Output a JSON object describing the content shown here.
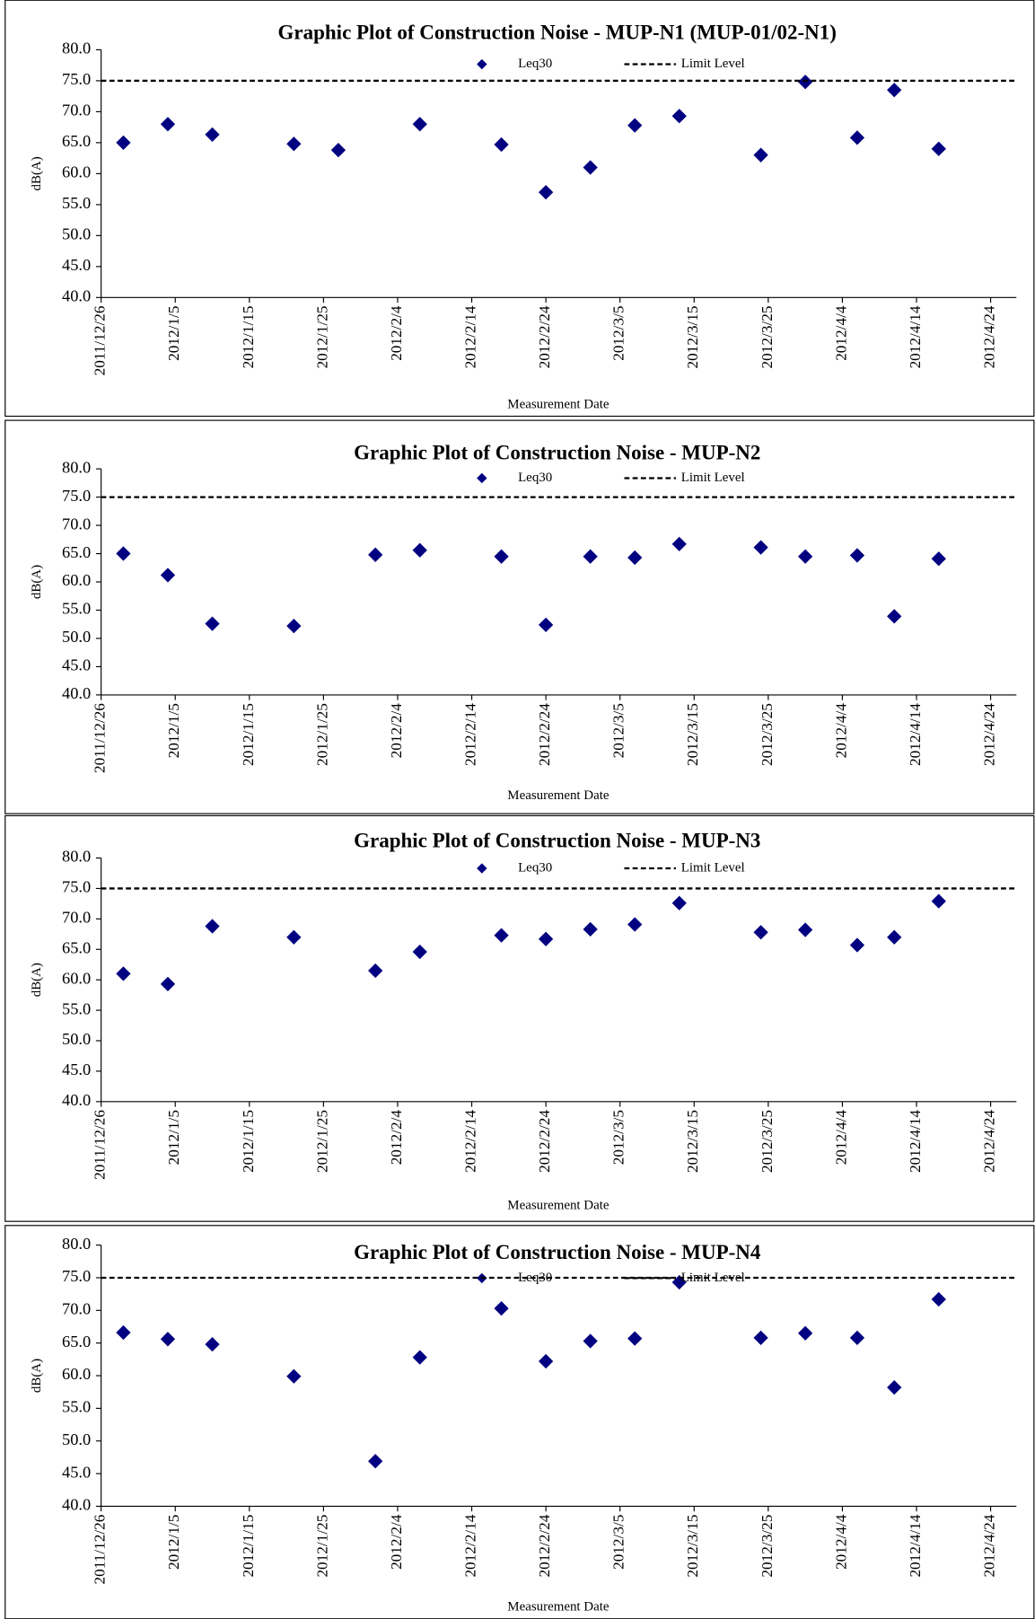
{
  "chart_data": [
    {
      "type": "scatter",
      "title": "Graphic Plot of Construction Noise - MUP-N1 (MUP-01/02-N1)",
      "x_label": "Measurement Date",
      "y_label": "dB(A)",
      "x": [
        "2011/12/29",
        "2012/1/4",
        "2012/1/10",
        "2012/1/21",
        "2012/1/27",
        "2012/2/7",
        "2012/2/18",
        "2012/2/24",
        "2012/3/1",
        "2012/3/7",
        "2012/3/13",
        "2012/3/24",
        "2012/3/30",
        "2012/4/6",
        "2012/4/11",
        "2012/4/17"
      ],
      "series": [
        {
          "name": "Leq30",
          "color": "#000080",
          "values": [
            65.0,
            68.0,
            66.3,
            64.8,
            63.8,
            68.0,
            64.7,
            57.0,
            61.0,
            67.8,
            69.3,
            63.0,
            74.8,
            65.8,
            73.5,
            64.0
          ]
        }
      ],
      "lines": [
        {
          "name": "Limit Level",
          "value": 75,
          "color": "#000000"
        }
      ],
      "xlim": [
        "2011/12/26",
        "2012/4/28"
      ],
      "xticks": [
        "2011/12/26",
        "2012/1/5",
        "2012/1/15",
        "2012/1/25",
        "2012/2/4",
        "2012/2/14",
        "2012/2/24",
        "2012/3/5",
        "2012/3/15",
        "2012/3/25",
        "2012/4/4",
        "2012/4/14",
        "2012/4/24"
      ],
      "ylim": [
        40,
        80
      ],
      "yticks": [
        {
          "value": 40,
          "label": "40.0"
        },
        {
          "value": 45,
          "label": "45.0"
        },
        {
          "value": 50,
          "label": "50.0"
        },
        {
          "value": 55,
          "label": "55.0"
        },
        {
          "value": 60,
          "label": "60.0"
        },
        {
          "value": 65,
          "label": "65.0"
        },
        {
          "value": 70,
          "label": "70.0"
        },
        {
          "value": 75,
          "label": "75.0"
        },
        {
          "value": 80,
          "label": "80.0"
        }
      ]
    },
    {
      "type": "scatter",
      "title": "Graphic Plot of Construction Noise - MUP-N2",
      "x_label": "Measurement Date",
      "y_label": "dB(A)",
      "x": [
        "2011/12/29",
        "2012/1/4",
        "2012/1/10",
        "2012/1/21",
        "2012/2/1",
        "2012/2/7",
        "2012/2/18",
        "2012/2/24",
        "2012/3/1",
        "2012/3/7",
        "2012/3/13",
        "2012/3/24",
        "2012/3/30",
        "2012/4/6",
        "2012/4/11",
        "2012/4/17"
      ],
      "series": [
        {
          "name": "Leq30",
          "color": "#000080",
          "values": [
            65.0,
            61.2,
            52.6,
            52.2,
            64.8,
            65.6,
            64.5,
            52.4,
            64.5,
            64.3,
            66.7,
            66.1,
            64.5,
            64.7,
            53.9,
            64.1
          ]
        }
      ],
      "lines": [
        {
          "name": "Limit Level",
          "value": 75,
          "color": "#000000"
        }
      ],
      "xlim": [
        "2011/12/26",
        "2012/4/28"
      ],
      "xticks": [
        "2011/12/26",
        "2012/1/5",
        "2012/1/15",
        "2012/1/25",
        "2012/2/4",
        "2012/2/14",
        "2012/2/24",
        "2012/3/5",
        "2012/3/15",
        "2012/3/25",
        "2012/4/4",
        "2012/4/14",
        "2012/4/24"
      ],
      "ylim": [
        40,
        80
      ],
      "yticks": [
        {
          "value": 40,
          "label": "40.0"
        },
        {
          "value": 45,
          "label": "45.0"
        },
        {
          "value": 50,
          "label": "50.0"
        },
        {
          "value": 55,
          "label": "55.0"
        },
        {
          "value": 60,
          "label": "60.0"
        },
        {
          "value": 65,
          "label": "65.0"
        },
        {
          "value": 70,
          "label": "70.0"
        },
        {
          "value": 75,
          "label": "75.0"
        },
        {
          "value": 80,
          "label": "80.0"
        }
      ]
    },
    {
      "type": "scatter",
      "title": "Graphic Plot of Construction Noise - MUP-N3",
      "x_label": "Measurement Date",
      "y_label": "dB(A)",
      "x": [
        "2011/12/29",
        "2012/1/4",
        "2012/1/10",
        "2012/1/21",
        "2012/2/1",
        "2012/2/7",
        "2012/2/18",
        "2012/2/24",
        "2012/3/1",
        "2012/3/7",
        "2012/3/13",
        "2012/3/24",
        "2012/3/30",
        "2012/4/6",
        "2012/4/11",
        "2012/4/17"
      ],
      "series": [
        {
          "name": "Leq30",
          "color": "#000080",
          "values": [
            61.0,
            59.3,
            68.8,
            67.0,
            61.5,
            64.6,
            67.3,
            66.7,
            68.3,
            69.1,
            72.6,
            67.8,
            68.2,
            65.7,
            67.0,
            72.9
          ]
        }
      ],
      "lines": [
        {
          "name": "Limit Level",
          "value": 75,
          "color": "#000000"
        }
      ],
      "xlim": [
        "2011/12/26",
        "2012/4/28"
      ],
      "xticks": [
        "2011/12/26",
        "2012/1/5",
        "2012/1/15",
        "2012/1/25",
        "2012/2/4",
        "2012/2/14",
        "2012/2/24",
        "2012/3/5",
        "2012/3/15",
        "2012/3/25",
        "2012/4/4",
        "2012/4/14",
        "2012/4/24"
      ],
      "ylim": [
        40,
        80
      ],
      "yticks": [
        {
          "value": 40,
          "label": "40.0"
        },
        {
          "value": 45,
          "label": "45.0"
        },
        {
          "value": 50,
          "label": "50.0"
        },
        {
          "value": 55,
          "label": "55.0"
        },
        {
          "value": 60,
          "label": "60.0"
        },
        {
          "value": 65,
          "label": "65.0"
        },
        {
          "value": 70,
          "label": "70.0"
        },
        {
          "value": 75,
          "label": "75.0"
        },
        {
          "value": 80,
          "label": "80.0"
        }
      ]
    },
    {
      "type": "scatter",
      "title": "Graphic Plot of Construction Noise - MUP-N4",
      "x_label": "Measurement Date",
      "y_label": "dB(A)",
      "x": [
        "2011/12/29",
        "2012/1/4",
        "2012/1/10",
        "2012/1/21",
        "2012/2/1",
        "2012/2/7",
        "2012/2/18",
        "2012/2/24",
        "2012/3/1",
        "2012/3/7",
        "2012/3/13",
        "2012/3/24",
        "2012/3/30",
        "2012/4/6",
        "2012/4/11",
        "2012/4/17"
      ],
      "series": [
        {
          "name": "Leq30",
          "color": "#000080",
          "values": [
            66.6,
            65.6,
            64.8,
            59.9,
            46.9,
            62.8,
            70.3,
            62.2,
            65.3,
            65.7,
            74.3,
            65.8,
            66.5,
            65.8,
            58.2,
            71.7
          ]
        }
      ],
      "lines": [
        {
          "name": "Limit Level",
          "value": 75,
          "color": "#000000"
        }
      ],
      "xlim": [
        "2011/12/26",
        "2012/4/28"
      ],
      "xticks": [
        "2011/12/26",
        "2012/1/5",
        "2012/1/15",
        "2012/1/25",
        "2012/2/4",
        "2012/2/14",
        "2012/2/24",
        "2012/3/5",
        "2012/3/15",
        "2012/3/25",
        "2012/4/4",
        "2012/4/14",
        "2012/4/24"
      ],
      "ylim": [
        40,
        80
      ],
      "yticks": [
        {
          "value": 40,
          "label": "40.0"
        },
        {
          "value": 45,
          "label": "45.0"
        },
        {
          "value": 50,
          "label": "50.0"
        },
        {
          "value": 55,
          "label": "55.0"
        },
        {
          "value": 60,
          "label": "60.0"
        },
        {
          "value": 65,
          "label": "65.0"
        },
        {
          "value": 70,
          "label": "70.0"
        },
        {
          "value": 75,
          "label": "75.0"
        },
        {
          "value": 80,
          "label": "80.0"
        }
      ]
    }
  ]
}
